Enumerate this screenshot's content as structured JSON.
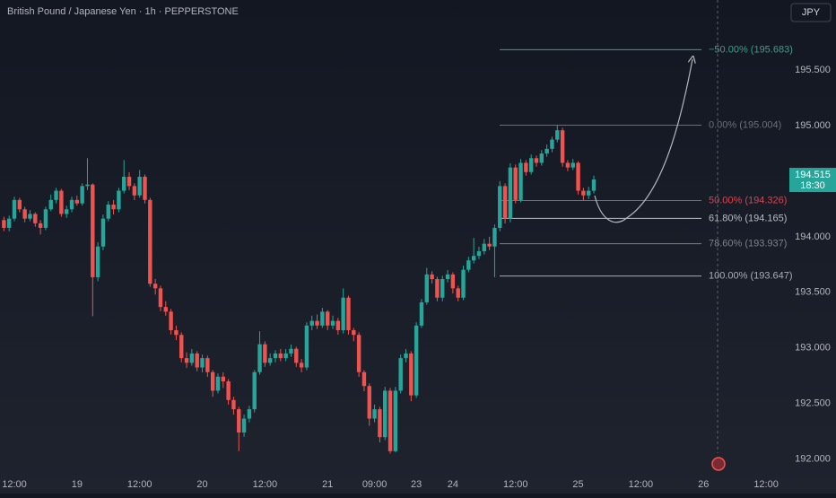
{
  "chart_data": {
    "type": "candlestick",
    "title": "British Pound / Japanese Yen · 1h · PEPPERSTONE",
    "currency": "JPY",
    "up_color": "#26a69a",
    "down_color": "#ef5350",
    "ylim": [
      191.69,
      196.13
    ],
    "yticks": [
      {
        "value": 192,
        "label": "192.000"
      },
      {
        "value": 192.5,
        "label": "192.500"
      },
      {
        "value": 193,
        "label": "193.000"
      },
      {
        "value": 193.5,
        "label": "193.500"
      },
      {
        "value": 194,
        "label": "194.000"
      },
      {
        "value": 195,
        "label": "195.000"
      },
      {
        "value": 195.5,
        "label": "195.500"
      }
    ],
    "xticks": [
      {
        "value": 2,
        "label": "12:00"
      },
      {
        "value": 14,
        "label": "19"
      },
      {
        "value": 26,
        "label": "12:00"
      },
      {
        "value": 38,
        "label": "20"
      },
      {
        "value": 50,
        "label": "12:00"
      },
      {
        "value": 62,
        "label": "21"
      },
      {
        "value": 71,
        "label": "09:00"
      },
      {
        "value": 79,
        "label": "23"
      },
      {
        "value": 86,
        "label": "24"
      },
      {
        "value": 98,
        "label": "12:00"
      },
      {
        "value": 110,
        "label": "25"
      },
      {
        "value": 122,
        "label": "12:00"
      },
      {
        "value": 134,
        "label": "26"
      },
      {
        "value": 146,
        "label": "12:00"
      }
    ],
    "candles": [
      [
        194.15,
        194.18,
        194.05,
        194.08
      ],
      [
        194.08,
        194.19,
        194.05,
        194.163
      ],
      [
        194.163,
        194.36,
        194.14,
        194.331
      ],
      [
        194.331,
        194.35,
        194.22,
        194.247
      ],
      [
        194.247,
        194.27,
        194.13,
        194.163
      ],
      [
        194.163,
        194.24,
        194.14,
        194.205
      ],
      [
        194.205,
        194.22,
        194.09,
        194.121
      ],
      [
        194.121,
        194.15,
        194.02,
        194.08
      ],
      [
        194.08,
        194.27,
        194.06,
        194.247
      ],
      [
        194.247,
        194.38,
        194.23,
        194.331
      ],
      [
        194.331,
        194.44,
        194.3,
        194.414
      ],
      [
        194.414,
        194.43,
        194.18,
        194.205
      ],
      [
        194.205,
        194.28,
        194.17,
        194.247
      ],
      [
        194.247,
        194.36,
        194.22,
        194.331
      ],
      [
        194.331,
        194.37,
        194.28,
        194.3
      ],
      [
        194.3,
        194.48,
        194.28,
        194.456
      ],
      [
        194.456,
        194.707,
        194.42,
        194.47
      ],
      [
        194.47,
        194.48,
        193.285,
        193.636
      ],
      [
        193.636,
        193.95,
        193.6,
        193.912
      ],
      [
        193.912,
        194.2,
        193.88,
        194.163
      ],
      [
        194.163,
        194.32,
        194.14,
        194.289
      ],
      [
        194.289,
        194.33,
        194.2,
        194.247
      ],
      [
        194.247,
        194.44,
        194.22,
        194.414
      ],
      [
        194.414,
        194.69,
        194.39,
        194.54
      ],
      [
        194.54,
        194.58,
        194.42,
        194.456
      ],
      [
        194.456,
        194.48,
        194.33,
        194.372
      ],
      [
        194.372,
        194.6,
        194.35,
        194.54
      ],
      [
        194.54,
        194.56,
        194.3,
        194.331
      ],
      [
        194.331,
        194.35,
        193.55,
        193.577
      ],
      [
        193.577,
        193.62,
        193.48,
        193.536
      ],
      [
        193.536,
        193.56,
        193.33,
        193.368
      ],
      [
        193.368,
        193.42,
        193.29,
        193.326
      ],
      [
        193.326,
        193.35,
        193.12,
        193.159
      ],
      [
        193.159,
        193.2,
        193.07,
        193.117
      ],
      [
        193.117,
        193.14,
        192.87,
        192.908
      ],
      [
        192.908,
        192.96,
        192.82,
        192.866
      ],
      [
        192.866,
        192.99,
        192.84,
        192.95
      ],
      [
        192.95,
        192.97,
        192.79,
        192.824
      ],
      [
        192.824,
        192.94,
        192.78,
        192.908
      ],
      [
        192.908,
        192.93,
        192.74,
        192.782
      ],
      [
        192.782,
        192.8,
        192.56,
        192.615
      ],
      [
        192.615,
        192.77,
        192.59,
        192.741
      ],
      [
        192.741,
        192.78,
        192.64,
        192.699
      ],
      [
        192.699,
        192.72,
        192.49,
        192.531
      ],
      [
        192.531,
        192.56,
        192.4,
        192.448
      ],
      [
        192.448,
        192.47,
        192.071,
        192.239
      ],
      [
        192.239,
        192.4,
        192.2,
        192.364
      ],
      [
        192.364,
        192.48,
        192.33,
        192.448
      ],
      [
        192.448,
        192.8,
        192.42,
        192.782
      ],
      [
        192.782,
        193.15,
        192.76,
        193.033
      ],
      [
        193.033,
        193.06,
        192.83,
        192.866
      ],
      [
        192.866,
        192.95,
        192.84,
        192.908
      ],
      [
        192.908,
        192.98,
        192.87,
        192.95
      ],
      [
        192.95,
        192.99,
        192.88,
        192.908
      ],
      [
        192.908,
        192.99,
        192.88,
        192.95
      ],
      [
        192.95,
        193.03,
        192.92,
        192.992
      ],
      [
        192.992,
        193.01,
        192.83,
        192.866
      ],
      [
        192.866,
        192.9,
        192.78,
        192.824
      ],
      [
        192.824,
        193.23,
        192.8,
        193.201
      ],
      [
        193.201,
        193.29,
        193.16,
        193.243
      ],
      [
        193.243,
        193.3,
        193.17,
        193.201
      ],
      [
        193.201,
        193.36,
        193.18,
        193.326
      ],
      [
        193.326,
        193.34,
        193.16,
        193.201
      ],
      [
        193.201,
        193.29,
        193.17,
        193.243
      ],
      [
        193.243,
        193.27,
        193.12,
        193.159
      ],
      [
        193.159,
        193.536,
        193.13,
        193.452
      ],
      [
        193.452,
        193.47,
        193.12,
        193.159
      ],
      [
        193.159,
        193.18,
        193.06,
        193.117
      ],
      [
        193.117,
        193.14,
        192.74,
        192.782
      ],
      [
        192.782,
        192.8,
        192.61,
        192.657
      ],
      [
        192.657,
        192.68,
        192.3,
        192.364
      ],
      [
        192.364,
        192.49,
        192.33,
        192.448
      ],
      [
        192.448,
        192.47,
        192.15,
        192.197
      ],
      [
        192.197,
        192.65,
        192.17,
        192.615
      ],
      [
        192.615,
        192.64,
        192.05,
        192.071
      ],
      [
        192.071,
        192.65,
        192.06,
        192.615
      ],
      [
        192.615,
        192.94,
        192.59,
        192.908
      ],
      [
        192.908,
        192.99,
        192.87,
        192.95
      ],
      [
        192.95,
        192.97,
        192.52,
        192.573
      ],
      [
        192.573,
        193.23,
        192.55,
        193.201
      ],
      [
        193.201,
        193.44,
        193.18,
        193.41
      ],
      [
        193.41,
        193.72,
        193.39,
        193.661
      ],
      [
        193.661,
        193.69,
        193.58,
        193.619
      ],
      [
        193.619,
        193.64,
        193.42,
        193.452
      ],
      [
        193.452,
        193.65,
        193.42,
        193.619
      ],
      [
        193.619,
        193.7,
        193.59,
        193.661
      ],
      [
        193.661,
        193.68,
        193.49,
        193.536
      ],
      [
        193.536,
        193.56,
        193.42,
        193.452
      ],
      [
        193.452,
        193.74,
        193.43,
        193.703
      ],
      [
        193.703,
        193.82,
        193.68,
        193.787
      ],
      [
        193.787,
        193.99,
        193.76,
        193.828
      ],
      [
        193.828,
        193.91,
        193.8,
        193.87
      ],
      [
        193.87,
        193.98,
        193.84,
        193.937
      ],
      [
        193.937,
        194.0,
        193.88,
        193.912
      ],
      [
        193.912,
        194.11,
        193.636,
        194.08
      ],
      [
        194.08,
        194.5,
        194.05,
        194.456
      ],
      [
        194.456,
        194.48,
        194.12,
        194.163
      ],
      [
        194.163,
        194.66,
        194.13,
        194.623
      ],
      [
        194.623,
        194.65,
        194.3,
        194.331
      ],
      [
        194.331,
        194.7,
        194.31,
        194.665
      ],
      [
        194.665,
        194.69,
        194.55,
        194.582
      ],
      [
        194.582,
        194.74,
        194.56,
        194.707
      ],
      [
        194.707,
        194.73,
        194.63,
        194.665
      ],
      [
        194.665,
        194.78,
        194.64,
        194.749
      ],
      [
        194.749,
        194.83,
        194.72,
        194.791
      ],
      [
        194.791,
        194.9,
        194.76,
        194.874
      ],
      [
        194.874,
        195.004,
        194.85,
        194.958
      ],
      [
        194.958,
        194.98,
        194.63,
        194.665
      ],
      [
        194.665,
        194.69,
        194.59,
        194.623
      ],
      [
        194.623,
        194.7,
        194.6,
        194.665
      ],
      [
        194.665,
        194.68,
        194.38,
        194.414
      ],
      [
        194.414,
        194.44,
        194.326,
        194.372
      ],
      [
        194.372,
        194.45,
        194.34,
        194.414
      ],
      [
        194.414,
        194.55,
        194.39,
        194.515
      ]
    ],
    "last_price": {
      "value": 194.515,
      "label": "194.515",
      "countdown": "18:30"
    },
    "fib_levels": [
      {
        "value": 195.683,
        "label": "−50.00% (195.683)",
        "color": "#3f9c8c"
      },
      {
        "value": 195.004,
        "label": "0.00% (195.004)",
        "color": "#6b6f7a"
      },
      {
        "value": 194.326,
        "label": "50.00% (194.326)",
        "color": "#d64550"
      },
      {
        "value": 194.165,
        "label": "61.80% (194.165)",
        "color": "#b8bcc6"
      },
      {
        "value": 193.937,
        "label": "78.60% (193.937)",
        "color": "#7d818c"
      },
      {
        "value": 193.647,
        "label": "100.00% (193.647)",
        "color": "#a9adb7"
      }
    ]
  }
}
